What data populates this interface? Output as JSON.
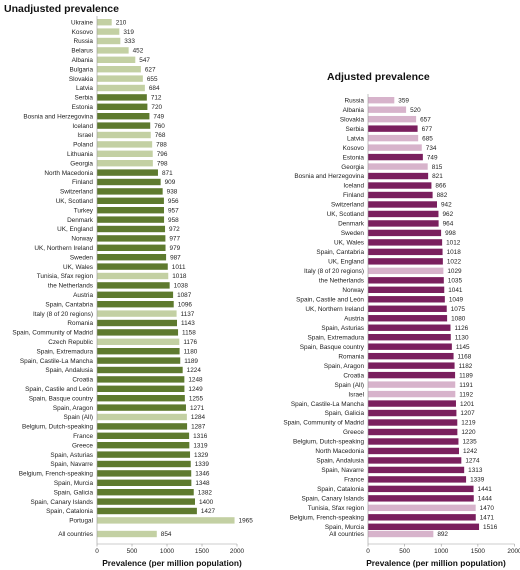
{
  "chart_data": [
    {
      "type": "bar",
      "orientation": "horizontal",
      "title": "Unadjusted prevalence",
      "xlabel": "Prevalence (per million population)",
      "ylabel": "",
      "xlim": [
        0,
        2000
      ],
      "xticks": [
        0,
        500,
        1000,
        1500,
        2000
      ],
      "grid": false,
      "colors": {
        "dark": "#5e7a2e",
        "light": "#c3d0a3"
      },
      "categories": [
        "Ukraine",
        "Kosovo",
        "Russia",
        "Belarus",
        "Albania",
        "Bulgaria",
        "Slovakia",
        "Latvia",
        "Serbia",
        "Estonia",
        "Bosnia and Herzegovina",
        "Iceland",
        "Israel",
        "Poland",
        "Lithuania",
        "Georgia",
        "North Macedonia",
        "Finland",
        "Switzerland",
        "UK, Scotland",
        "Turkey",
        "Denmark",
        "UK, England",
        "Norway",
        "UK, Northern Ireland",
        "Sweden",
        "UK, Wales",
        "Tunisia, Sfax region",
        "the Netherlands",
        "Austria",
        "Spain, Cantabria",
        "Italy (8 of 20 regions)",
        "Romania",
        "Spain, Community of Madrid",
        "Czech Republic",
        "Spain, Extremadura",
        "Spain, Castile-La Mancha",
        "Spain, Andalusia",
        "Croatia",
        "Spain, Castile and León",
        "Spain, Basque country",
        "Spain, Aragon",
        "Spain (All)",
        "Belgium, Dutch-speaking",
        "France",
        "Greece",
        "Spain, Asturias",
        "Spain, Navarre",
        "Belgium, French-speaking",
        "Spain, Murcia",
        "Spain, Galicia",
        "Spain, Canary Islands",
        "Spain, Catalonia",
        "Portugal"
      ],
      "values": [
        210,
        319,
        333,
        452,
        547,
        627,
        655,
        684,
        712,
        720,
        749,
        760,
        768,
        788,
        796,
        798,
        871,
        909,
        938,
        956,
        957,
        958,
        972,
        977,
        979,
        987,
        1011,
        1018,
        1038,
        1087,
        1096,
        1137,
        1143,
        1158,
        1176,
        1180,
        1189,
        1224,
        1248,
        1249,
        1255,
        1271,
        1284,
        1287,
        1316,
        1319,
        1329,
        1339,
        1346,
        1348,
        1382,
        1400,
        1427,
        1965
      ],
      "shades": [
        "L",
        "L",
        "L",
        "L",
        "L",
        "L",
        "L",
        "L",
        "D",
        "D",
        "D",
        "D",
        "L",
        "L",
        "L",
        "L",
        "D",
        "D",
        "D",
        "D",
        "D",
        "D",
        "D",
        "D",
        "D",
        "D",
        "D",
        "L",
        "D",
        "D",
        "D",
        "L",
        "D",
        "D",
        "L",
        "D",
        "D",
        "D",
        "D",
        "D",
        "D",
        "D",
        "L",
        "D",
        "D",
        "D",
        "D",
        "D",
        "D",
        "D",
        "D",
        "D",
        "D",
        "L"
      ],
      "summary": {
        "category": "All countries",
        "value": 854
      }
    },
    {
      "type": "bar",
      "orientation": "horizontal",
      "title": "Adjusted prevalence",
      "xlabel": "Prevalence (per million population)",
      "ylabel": "",
      "xlim": [
        0,
        2000
      ],
      "xticks": [
        0,
        500,
        1000,
        1500,
        2000
      ],
      "grid": false,
      "colors": {
        "dark": "#7a1f5e",
        "light": "#d7b3cb"
      },
      "categories": [
        "Russia",
        "Albania",
        "Slovakia",
        "Serbia",
        "Latvia",
        "Kosovo",
        "Estonia",
        "Georgia",
        "Bosnia and Herzegovina",
        "Iceland",
        "Finland",
        "Switzerland",
        "UK, Scotland",
        "Denmark",
        "Sweden",
        "UK, Wales",
        "Spain, Cantabria",
        "UK, England",
        "Italy (8 of 20 regions)",
        "the Netherlands",
        "Norway",
        "Spain, Castile and León",
        "UK, Northern Ireland",
        "Austria",
        "Spain, Asturias",
        "Spain, Extremadura",
        "Spain, Basque country",
        "Romania",
        "Spain, Aragon",
        "Croatia",
        "Spain (All)",
        "Israel",
        "Spain, Castile-La Mancha",
        "Spain, Galicia",
        "Spain, Community of Madrid",
        "Greece",
        "Belgium, Dutch-speaking",
        "North Macedonia",
        "Spain, Andalusia",
        "Spain, Navarre",
        "France",
        "Spain, Catalonia",
        "Spain, Canary Islands",
        "Tunisia, Sfax region",
        "Belgium, French-speaking",
        "Spain, Murcia"
      ],
      "values": [
        359,
        520,
        657,
        677,
        685,
        734,
        749,
        815,
        821,
        866,
        882,
        942,
        962,
        964,
        998,
        1012,
        1018,
        1022,
        1029,
        1035,
        1041,
        1049,
        1075,
        1080,
        1126,
        1130,
        1145,
        1168,
        1182,
        1189,
        1191,
        1192,
        1201,
        1207,
        1219,
        1220,
        1235,
        1242,
        1274,
        1313,
        1339,
        1441,
        1444,
        1470,
        1471,
        1516
      ],
      "shades": [
        "L",
        "L",
        "L",
        "D",
        "L",
        "L",
        "D",
        "L",
        "D",
        "D",
        "D",
        "D",
        "D",
        "D",
        "D",
        "D",
        "D",
        "D",
        "L",
        "D",
        "D",
        "D",
        "D",
        "D",
        "D",
        "D",
        "D",
        "D",
        "D",
        "D",
        "L",
        "L",
        "D",
        "D",
        "D",
        "D",
        "D",
        "D",
        "D",
        "D",
        "D",
        "D",
        "D",
        "L",
        "D",
        "D"
      ],
      "summary": {
        "category": "All countries",
        "value": 892
      }
    }
  ]
}
